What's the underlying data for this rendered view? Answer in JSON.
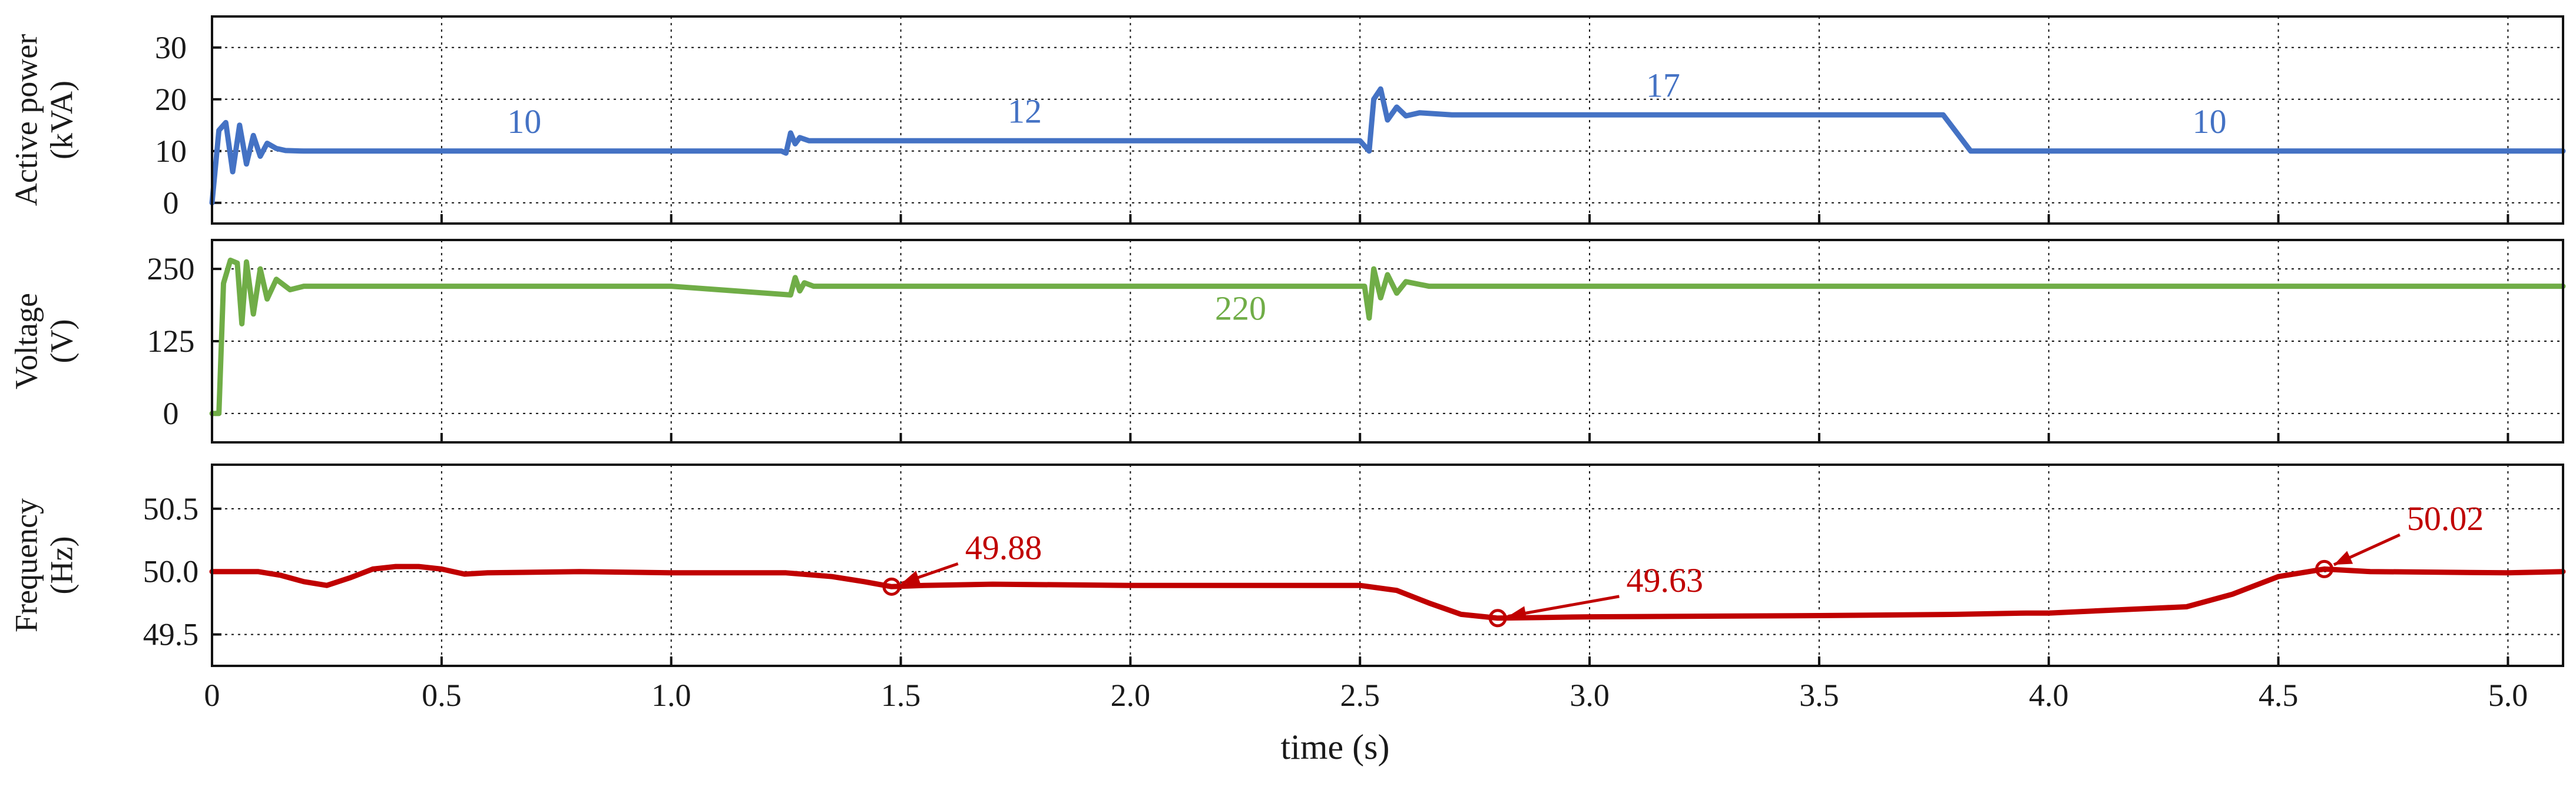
{
  "chart_data": {
    "type": "line",
    "xlabel": "time (s)",
    "xlim": [
      0,
      5.12
    ],
    "xticks": [
      0,
      0.5,
      1.0,
      1.5,
      2.0,
      2.5,
      3.0,
      3.5,
      4.0,
      4.5,
      5.0
    ],
    "xtick_labels": [
      "0",
      "0.5",
      "1.0",
      "1.5",
      "2.0",
      "2.5",
      "3.0",
      "3.5",
      "4.0",
      "4.5",
      "5.0"
    ],
    "grid": true,
    "panels": [
      {
        "key": "power",
        "ylabel_lines": [
          "Active power",
          "(kVA)"
        ],
        "ylim": [
          -4,
          36
        ],
        "yticks": [
          0,
          10,
          20,
          30
        ],
        "ytick_labels": [
          "0",
          "10",
          "20",
          "30"
        ],
        "color": "#4472c4",
        "series_name": "Active power",
        "x": [
          0,
          0.015,
          0.03,
          0.045,
          0.06,
          0.075,
          0.09,
          0.105,
          0.12,
          0.14,
          0.16,
          0.2,
          0.5,
          1.0,
          1.24,
          1.25,
          1.26,
          1.27,
          1.28,
          1.3,
          1.5,
          2.0,
          2.5,
          2.52,
          2.53,
          2.545,
          2.56,
          2.58,
          2.6,
          2.63,
          2.7,
          3.0,
          3.5,
          3.77,
          3.8,
          3.83,
          4.0,
          4.5,
          5.12
        ],
        "values": [
          0,
          14,
          15.5,
          6,
          15,
          7.5,
          13,
          9,
          11.5,
          10.5,
          10.1,
          10,
          10,
          10,
          10,
          9.6,
          13.5,
          11.4,
          12.6,
          12,
          12,
          12,
          12,
          10,
          20,
          22,
          16,
          18.5,
          16.8,
          17.4,
          17,
          17,
          17,
          17,
          13.5,
          10,
          10,
          10,
          10
        ],
        "annotations": [
          {
            "text": "10",
            "x": 0.68,
            "y": 13.5
          },
          {
            "text": "12",
            "x": 1.77,
            "y": 15.5
          },
          {
            "text": "17",
            "x": 3.16,
            "y": 20.5
          },
          {
            "text": "10",
            "x": 4.35,
            "y": 13.5
          }
        ]
      },
      {
        "key": "voltage",
        "ylabel_lines": [
          "Voltage",
          "(V)"
        ],
        "ylim": [
          -50,
          300
        ],
        "yticks": [
          0,
          125,
          250
        ],
        "ytick_labels": [
          "0",
          "125",
          "250"
        ],
        "color": "#70ad47",
        "series_name": "Voltage",
        "x": [
          0,
          0.015,
          0.025,
          0.04,
          0.055,
          0.065,
          0.075,
          0.09,
          0.105,
          0.12,
          0.14,
          0.17,
          0.2,
          0.5,
          1.0,
          1.26,
          1.27,
          1.28,
          1.29,
          1.31,
          1.35,
          2.0,
          2.51,
          2.52,
          2.53,
          2.545,
          2.56,
          2.58,
          2.6,
          2.65,
          3.0,
          4.0,
          5.12
        ],
        "values": [
          0,
          0,
          225,
          265,
          260,
          155,
          262,
          172,
          250,
          198,
          232,
          214,
          220,
          220,
          220,
          205,
          235,
          212,
          226,
          220,
          220,
          220,
          220,
          165,
          250,
          200,
          240,
          208,
          228,
          220,
          220,
          220,
          220
        ],
        "annotations": [
          {
            "text": "220",
            "x": 2.24,
            "y": 162
          }
        ]
      },
      {
        "key": "frequency",
        "ylabel_lines": [
          "Frequency",
          "(Hz)"
        ],
        "ylim": [
          49.25,
          50.85
        ],
        "yticks": [
          49.5,
          50.0,
          50.5
        ],
        "ytick_labels": [
          "49.5",
          "50.0",
          "50.5"
        ],
        "color": "#c00000",
        "series_name": "Frequency",
        "x": [
          0,
          0.1,
          0.15,
          0.2,
          0.25,
          0.3,
          0.35,
          0.4,
          0.45,
          0.5,
          0.55,
          0.6,
          0.8,
          1.0,
          1.25,
          1.35,
          1.42,
          1.48,
          1.55,
          1.7,
          2.0,
          2.5,
          2.58,
          2.65,
          2.72,
          2.8,
          2.9,
          3.0,
          3.5,
          3.8,
          3.95,
          4.0,
          4.3,
          4.4,
          4.5,
          4.6,
          4.7,
          5.0,
          5.12
        ],
        "values": [
          50.0,
          50.0,
          49.97,
          49.92,
          49.89,
          49.95,
          50.02,
          50.04,
          50.04,
          50.02,
          49.98,
          49.99,
          50.0,
          49.99,
          49.99,
          49.96,
          49.92,
          49.88,
          49.89,
          49.9,
          49.89,
          49.89,
          49.85,
          49.75,
          49.66,
          49.63,
          49.635,
          49.64,
          49.65,
          49.66,
          49.67,
          49.67,
          49.72,
          49.82,
          49.96,
          50.02,
          50.0,
          49.99,
          50.0
        ],
        "markers": [
          {
            "x": 1.48,
            "y": 49.88,
            "text": "49.88",
            "tx": 1.64,
            "ty": 50.1
          },
          {
            "x": 2.8,
            "y": 49.63,
            "text": "49.63",
            "tx": 3.08,
            "ty": 49.84
          },
          {
            "x": 4.6,
            "y": 50.02,
            "text": "50.02",
            "tx": 4.78,
            "ty": 50.33
          }
        ]
      }
    ]
  }
}
